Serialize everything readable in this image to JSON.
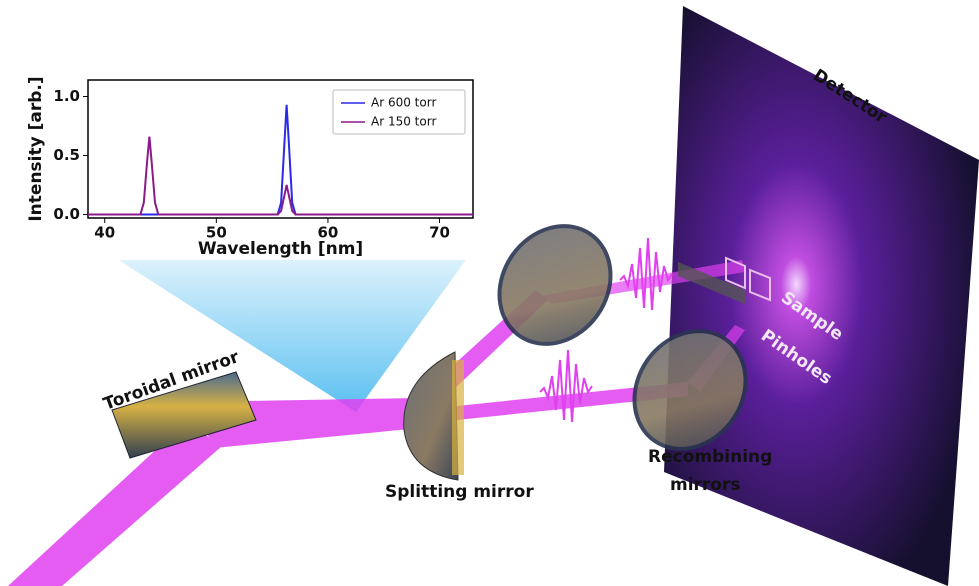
{
  "chart_data": {
    "type": "line",
    "x_label": "Wavelength [nm]",
    "y_label": "Intensity [arb.]",
    "x": [
      38.5,
      43.2,
      43.5,
      43.8,
      44.0,
      44.2,
      44.5,
      44.8,
      55.5,
      55.8,
      56.1,
      56.3,
      56.5,
      56.8,
      57.1,
      73
    ],
    "series": [
      {
        "name": "Ar 600 torr",
        "color": "#2a2ae8",
        "values": [
          0,
          0,
          0,
          0,
          0,
          0,
          0,
          0,
          0,
          0.1,
          0.6,
          0.93,
          0.6,
          0.1,
          0,
          0
        ]
      },
      {
        "name": "Ar 150 torr",
        "color": "#8b1a8b",
        "values": [
          0,
          0,
          0.1,
          0.45,
          0.66,
          0.45,
          0.1,
          0,
          0,
          0.03,
          0.16,
          0.25,
          0.16,
          0.03,
          0,
          0
        ]
      }
    ],
    "xlim": [
      38.5,
      73
    ],
    "xticks": [
      40,
      50,
      60,
      70
    ],
    "ylim": [
      -0.03,
      1.14
    ],
    "yticks": [
      {
        "value": 0,
        "label": "0.0"
      },
      0.5,
      {
        "value": 1,
        "label": "1.0"
      }
    ],
    "legend": "upper right"
  },
  "diagram": {
    "labels": {
      "detector": "Detector",
      "sample": "Sample",
      "pinholes": "Pinholes",
      "toroidal_mirror": "Toroidal mirror",
      "splitting_mirror": "Splitting mirror",
      "recombining_mirrors": [
        "Recombining",
        "mirrors"
      ]
    }
  }
}
